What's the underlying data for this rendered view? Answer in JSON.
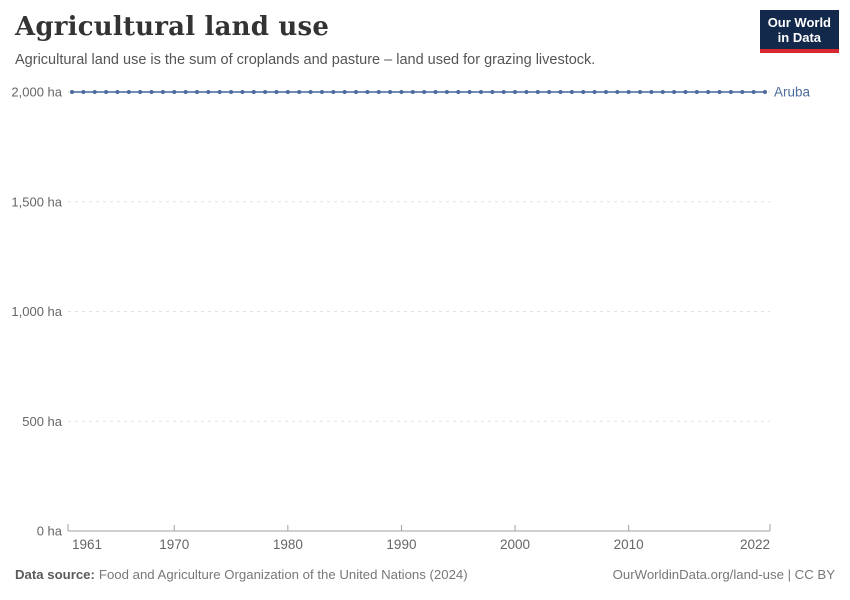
{
  "header": {
    "title": "Agricultural land use",
    "subtitle": "Agricultural land use is the sum of croplands and pasture – land used for grazing livestock.",
    "logo": {
      "line1": "Our World",
      "line2": "in Data"
    }
  },
  "chart_data": {
    "type": "line",
    "title": "Agricultural land use",
    "unit": "ha",
    "grid": true,
    "ylim": [
      0,
      2000
    ],
    "yticks": [
      {
        "value": 0,
        "label": "0 ha"
      },
      {
        "value": 500,
        "label": "500 ha"
      },
      {
        "value": 1000,
        "label": "1,000 ha"
      },
      {
        "value": 1500,
        "label": "1,500 ha"
      },
      {
        "value": 2000,
        "label": "2,000 ha"
      }
    ],
    "xticks": [
      1961,
      1970,
      1980,
      1990,
      2000,
      2010,
      2022
    ],
    "x": [
      1961,
      1962,
      1963,
      1964,
      1965,
      1966,
      1967,
      1968,
      1969,
      1970,
      1971,
      1972,
      1973,
      1974,
      1975,
      1976,
      1977,
      1978,
      1979,
      1980,
      1981,
      1982,
      1983,
      1984,
      1985,
      1986,
      1987,
      1988,
      1989,
      1990,
      1991,
      1992,
      1993,
      1994,
      1995,
      1996,
      1997,
      1998,
      1999,
      2000,
      2001,
      2002,
      2003,
      2004,
      2005,
      2006,
      2007,
      2008,
      2009,
      2010,
      2011,
      2012,
      2013,
      2014,
      2015,
      2016,
      2017,
      2018,
      2019,
      2020,
      2021,
      2022
    ],
    "series": [
      {
        "name": "Aruba",
        "color": "#4C6A9C",
        "line_color": "#5B7BAD",
        "values": [
          2000,
          2000,
          2000,
          2000,
          2000,
          2000,
          2000,
          2000,
          2000,
          2000,
          2000,
          2000,
          2000,
          2000,
          2000,
          2000,
          2000,
          2000,
          2000,
          2000,
          2000,
          2000,
          2000,
          2000,
          2000,
          2000,
          2000,
          2000,
          2000,
          2000,
          2000,
          2000,
          2000,
          2000,
          2000,
          2000,
          2000,
          2000,
          2000,
          2000,
          2000,
          2000,
          2000,
          2000,
          2000,
          2000,
          2000,
          2000,
          2000,
          2000,
          2000,
          2000,
          2000,
          2000,
          2000,
          2000,
          2000,
          2000,
          2000,
          2000,
          2000,
          2000
        ]
      }
    ],
    "colors": {
      "grid": "#e2e2e2",
      "axis": "#a1a1a1",
      "tick_text": "#666666"
    },
    "legend_position": "right-of-line"
  },
  "footer": {
    "source_label": "Data source:",
    "source_text": "Food and Agriculture Organization of the United Nations (2024)",
    "link": "OurWorldinData.org/land-use | CC BY"
  }
}
